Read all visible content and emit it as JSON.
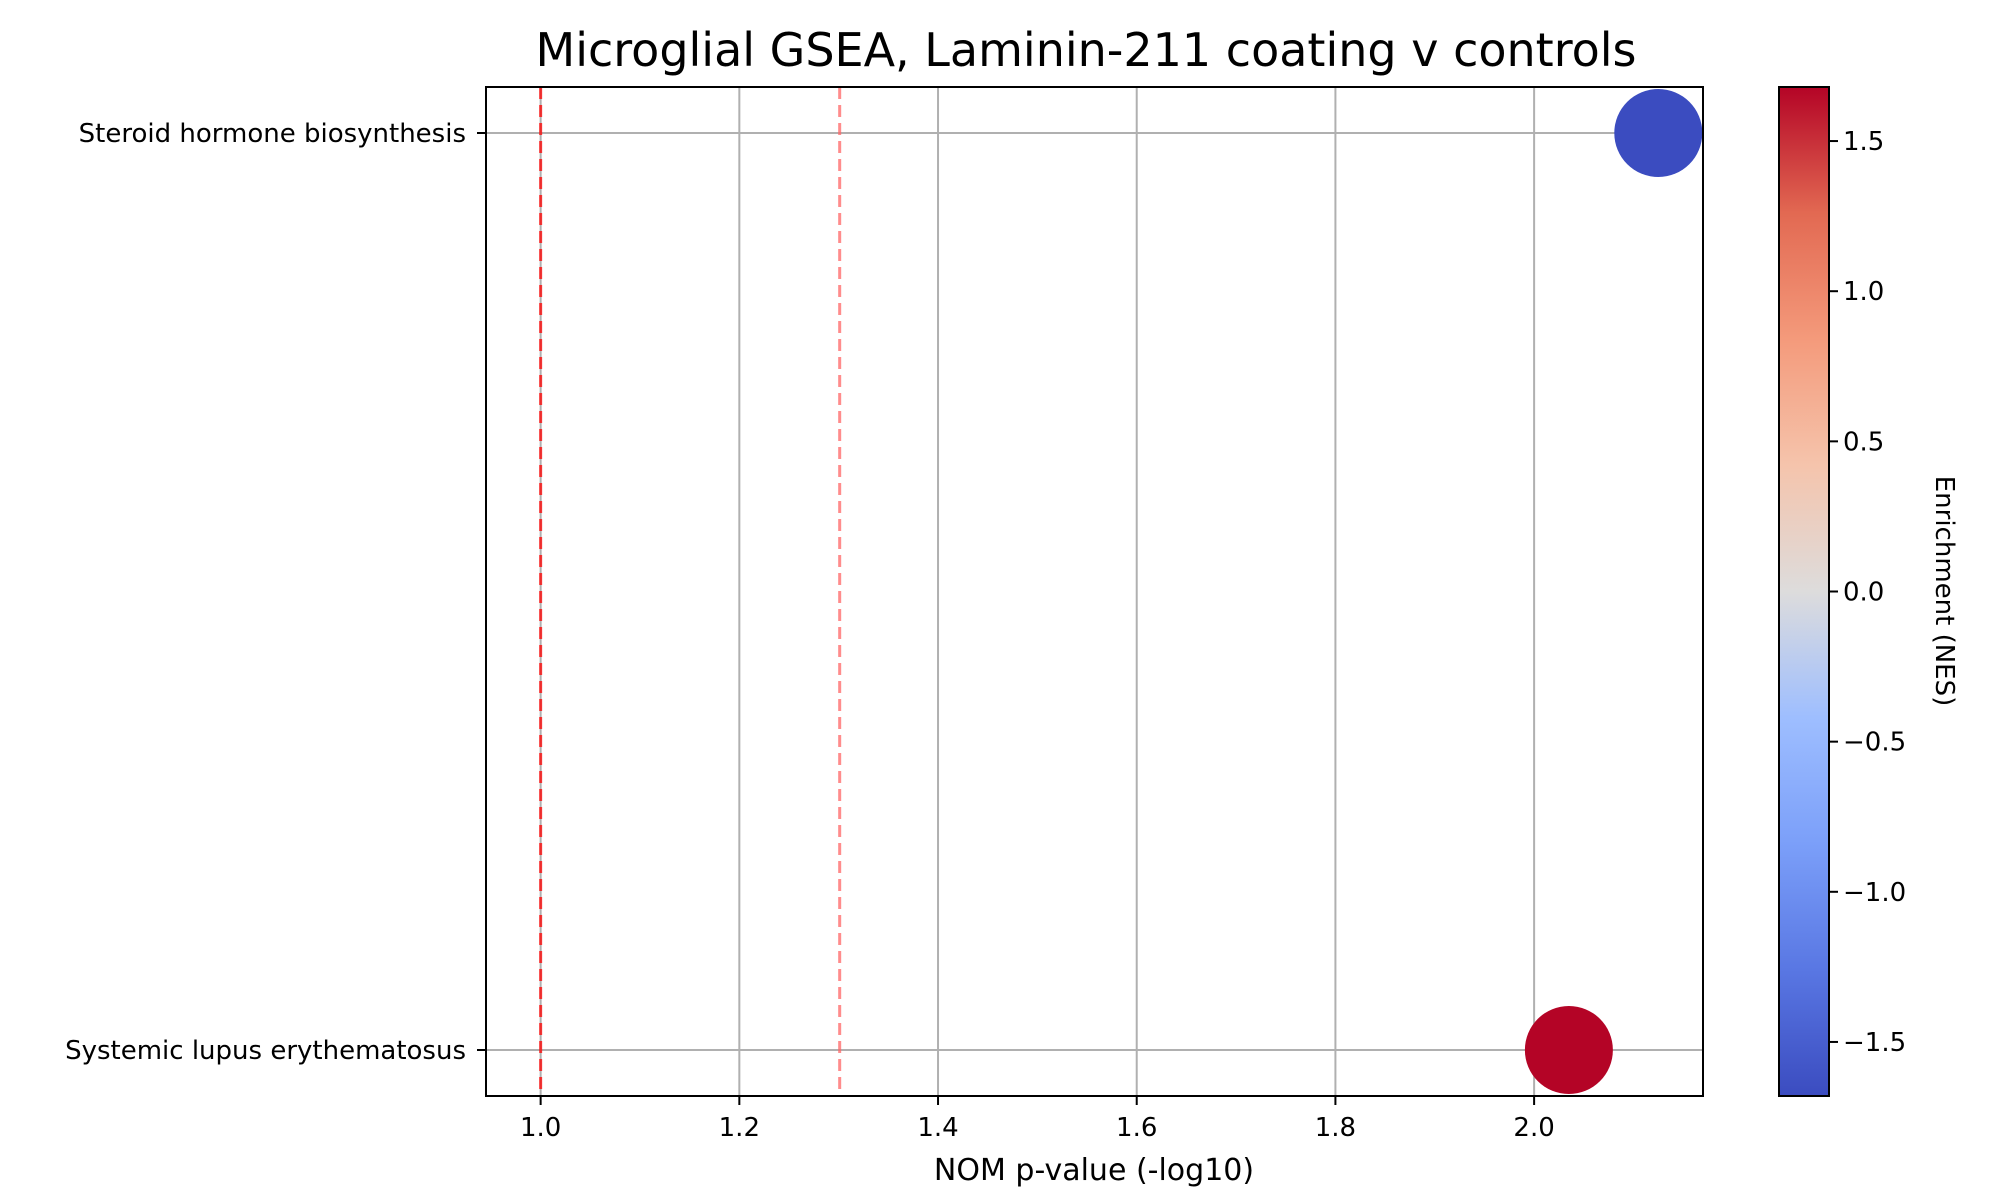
{
  "chart_data": {
    "type": "scatter",
    "title": "Microglial GSEA, Laminin-211 coating v controls",
    "xlabel": "NOM p-value (-log10)",
    "ylabel": "",
    "xlim": [
      0.945,
      2.17
    ],
    "x_ticks": [
      1.0,
      1.2,
      1.4,
      1.6,
      1.8,
      2.0
    ],
    "x_tick_labels": [
      "1.0",
      "1.2",
      "1.4",
      "1.6",
      "1.8",
      "2.0"
    ],
    "categories": [
      "Steroid hormone biosynthesis",
      "Systemic lupus erythematosus"
    ],
    "points": [
      {
        "category": "Steroid hormone biosynthesis",
        "x": 2.125,
        "nes": -1.68
      },
      {
        "category": "Systemic lupus erythematosus",
        "x": 2.035,
        "nes": 1.68
      }
    ],
    "reference_lines": [
      {
        "x": 1.0,
        "style": "dashed",
        "color": "#ff0000"
      },
      {
        "x": 1.301,
        "style": "dashed",
        "color": "#ff6666"
      }
    ],
    "grid": true,
    "colorbar": {
      "label": "Enrichment (NES)",
      "colormap": "coolwarm",
      "range": [
        -1.68,
        1.68
      ],
      "ticks": [
        -1.5,
        -1.0,
        -0.5,
        0.0,
        0.5,
        1.0,
        1.5
      ],
      "tick_labels": [
        "−1.5",
        "−1.0",
        "−0.5",
        "0.0",
        "0.5",
        "1.0",
        "1.5"
      ]
    }
  }
}
